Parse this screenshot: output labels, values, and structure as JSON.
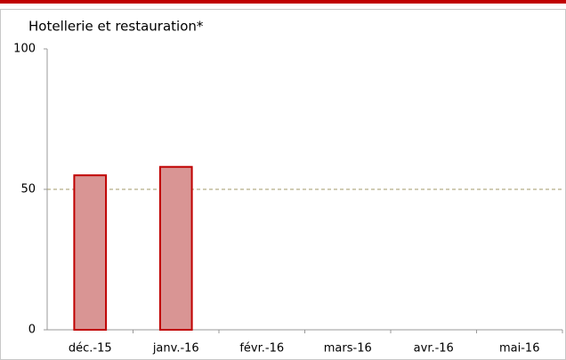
{
  "chart_data": {
    "type": "bar",
    "title": "Hotellerie et restauration*",
    "categories": [
      "déc.-15",
      "janv.-16",
      "févr.-16",
      "mars-16",
      "avr.-16",
      "mai-16"
    ],
    "values": [
      55,
      58,
      null,
      null,
      null,
      null
    ],
    "color": "#d99594",
    "edge_color": "#c00000",
    "ylim": [
      0,
      100
    ],
    "yticks": [
      0,
      50,
      100
    ],
    "reference_line": 50,
    "reference_color": "#a09a6a"
  }
}
